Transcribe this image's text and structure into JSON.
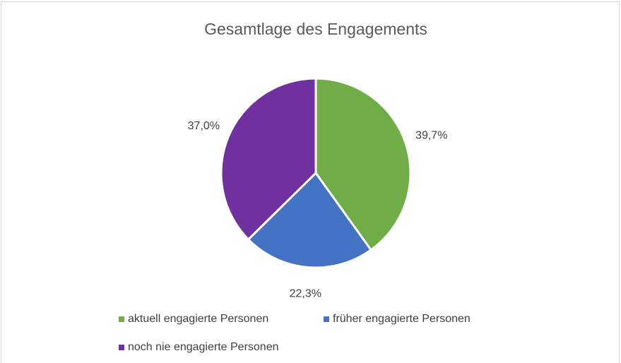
{
  "chart_data": {
    "type": "pie",
    "title": "Gesamtlage des Engagements",
    "categories": [
      "aktuell engagierte Personen",
      "früher engagierte Personen",
      "noch nie engagierte Personen"
    ],
    "values": [
      39.7,
      22.3,
      37.0
    ],
    "value_labels": [
      "39,7%",
      "22,3%",
      "37,0%"
    ],
    "colors": [
      "#70ad47",
      "#4472c4",
      "#7030a0"
    ],
    "legend": "bottom"
  }
}
